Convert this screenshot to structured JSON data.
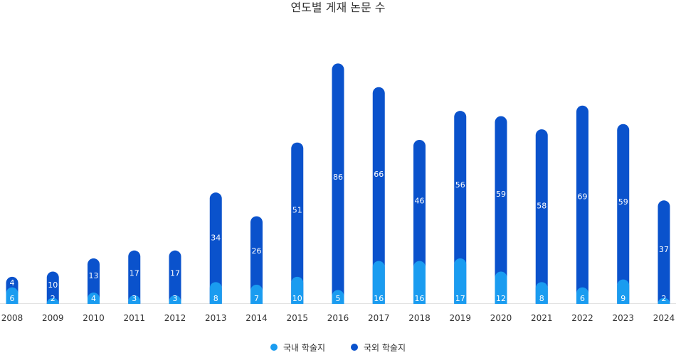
{
  "chart_data": {
    "type": "bar",
    "stacked": true,
    "title": "연도별 게재 논문 수",
    "categories": [
      "2008",
      "2009",
      "2010",
      "2011",
      "2012",
      "2013",
      "2014",
      "2015",
      "2016",
      "2017",
      "2018",
      "2019",
      "2020",
      "2021",
      "2022",
      "2023",
      "2024"
    ],
    "series": [
      {
        "name": "국내 학술지",
        "color": "#1a9cf0",
        "values": [
          6,
          2,
          4,
          3,
          3,
          8,
          7,
          10,
          5,
          16,
          16,
          17,
          12,
          8,
          6,
          9,
          2
        ]
      },
      {
        "name": "국외 학술지",
        "color": "#0a52cc",
        "values": [
          4,
          10,
          13,
          17,
          17,
          34,
          26,
          51,
          86,
          66,
          46,
          56,
          59,
          58,
          69,
          59,
          37
        ]
      }
    ],
    "legend_position": "bottom",
    "grid": false
  }
}
